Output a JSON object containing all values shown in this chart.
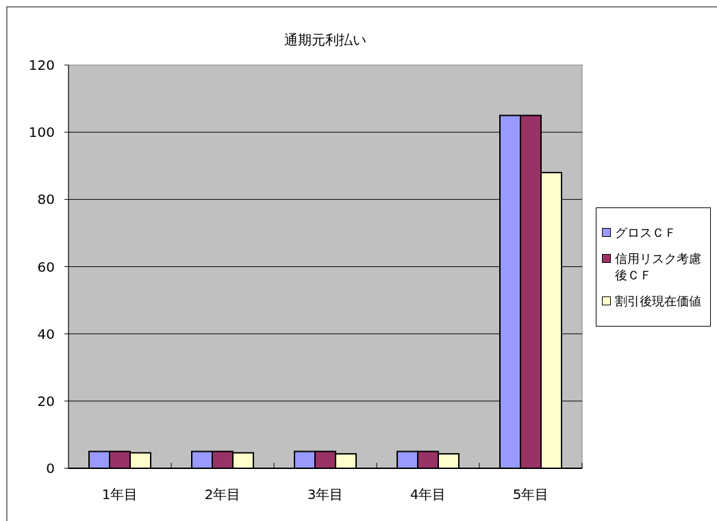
{
  "chart_data": {
    "type": "bar",
    "title": "通期元利払い",
    "categories": [
      "1年目",
      "2年目",
      "3年目",
      "4年目",
      "5年目"
    ],
    "series": [
      {
        "name": "グロスＣＦ",
        "color": "#9999ff",
        "values": [
          5,
          5,
          5,
          5,
          105
        ]
      },
      {
        "name": "信用リスク考慮後ＣＦ",
        "color": "#993366",
        "values": [
          5,
          5,
          5,
          5,
          105
        ]
      },
      {
        "name": "割引後現在価値",
        "color": "#ffffcc",
        "values": [
          4.6,
          4.6,
          4.3,
          4.3,
          88
        ]
      }
    ],
    "ylim": [
      0,
      120
    ],
    "yticks": [
      0,
      20,
      40,
      60,
      80,
      100,
      120
    ],
    "grid": "y",
    "legend": "right"
  }
}
